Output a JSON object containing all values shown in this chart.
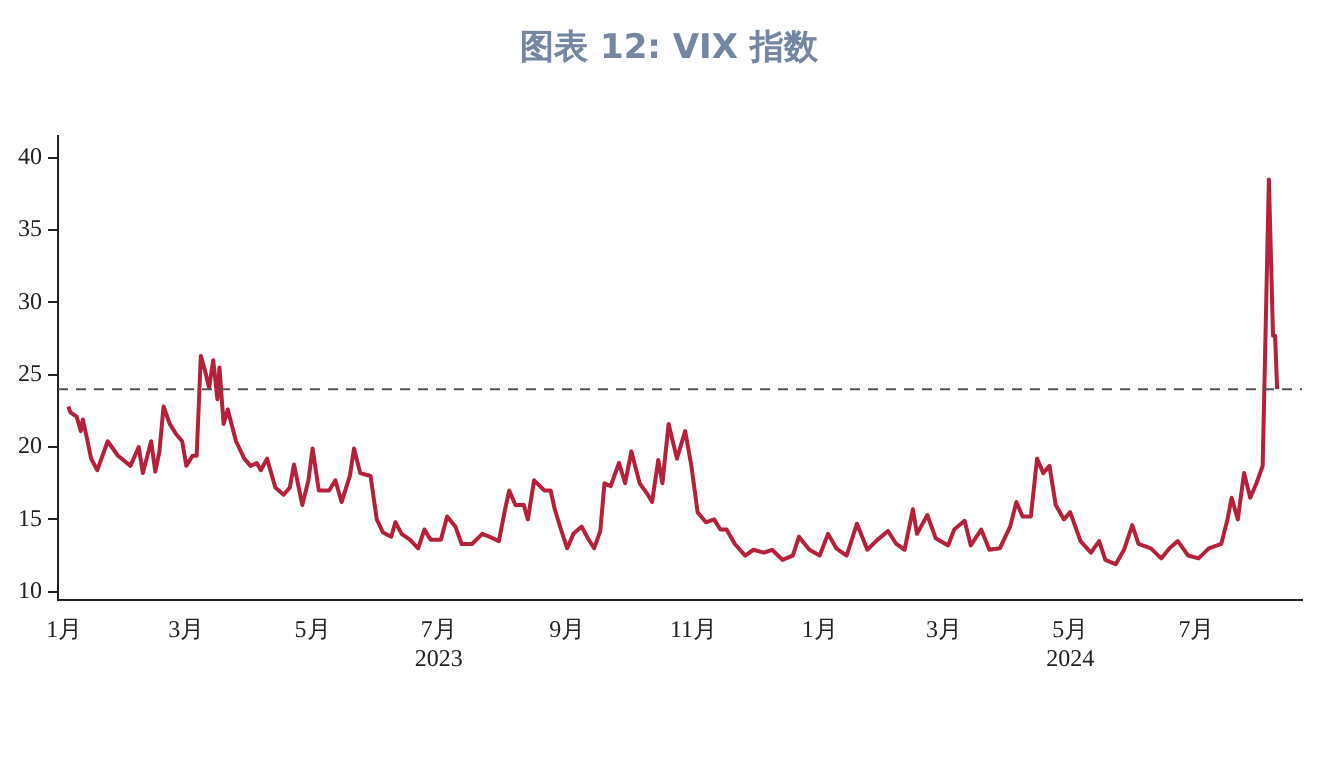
{
  "chart_data": {
    "type": "line",
    "title": "图表 12: VIX 指数",
    "x": [
      "2023-01-03",
      "2023-01-04",
      "2023-01-07",
      "2023-01-09",
      "2023-01-10",
      "2023-01-12",
      "2023-01-14",
      "2023-01-17",
      "2023-01-22",
      "2023-01-27",
      "2023-02-02",
      "2023-02-06",
      "2023-02-08",
      "2023-02-12",
      "2023-02-14",
      "2023-02-16",
      "2023-02-18",
      "2023-02-21",
      "2023-02-24",
      "2023-02-27",
      "2023-03-01",
      "2023-03-04",
      "2023-03-06",
      "2023-03-08",
      "2023-03-10",
      "2023-03-12",
      "2023-03-14",
      "2023-03-16",
      "2023-03-17",
      "2023-03-19",
      "2023-03-21",
      "2023-03-25",
      "2023-03-29",
      "2023-04-01",
      "2023-04-04",
      "2023-04-06",
      "2023-04-09",
      "2023-04-13",
      "2023-04-17",
      "2023-04-20",
      "2023-04-22",
      "2023-04-26",
      "2023-04-29",
      "2023-05-01",
      "2023-05-04",
      "2023-05-09",
      "2023-05-12",
      "2023-05-15",
      "2023-05-19",
      "2023-05-21",
      "2023-05-24",
      "2023-05-29",
      "2023-06-01",
      "2023-06-04",
      "2023-06-08",
      "2023-06-10",
      "2023-06-13",
      "2023-06-17",
      "2023-06-21",
      "2023-06-24",
      "2023-06-27",
      "2023-07-02",
      "2023-07-05",
      "2023-07-09",
      "2023-07-12",
      "2023-07-17",
      "2023-07-22",
      "2023-07-27",
      "2023-07-30",
      "2023-08-02",
      "2023-08-04",
      "2023-08-07",
      "2023-08-11",
      "2023-08-13",
      "2023-08-16",
      "2023-08-21",
      "2023-08-24",
      "2023-08-26",
      "2023-08-29",
      "2023-09-01",
      "2023-09-04",
      "2023-09-08",
      "2023-09-11",
      "2023-09-14",
      "2023-09-17",
      "2023-09-19",
      "2023-09-22",
      "2023-09-26",
      "2023-09-29",
      "2023-10-02",
      "2023-10-06",
      "2023-10-10",
      "2023-10-12",
      "2023-10-15",
      "2023-10-17",
      "2023-10-20",
      "2023-10-24",
      "2023-10-28",
      "2023-10-31",
      "2023-11-03",
      "2023-11-07",
      "2023-11-11",
      "2023-11-14",
      "2023-11-17",
      "2023-11-21",
      "2023-11-26",
      "2023-11-30",
      "2023-12-05",
      "2023-12-09",
      "2023-12-14",
      "2023-12-19",
      "2023-12-22",
      "2023-12-27",
      "2024-01-01",
      "2024-01-05",
      "2024-01-09",
      "2024-01-14",
      "2024-01-19",
      "2024-01-24",
      "2024-01-29",
      "2024-02-03",
      "2024-02-07",
      "2024-02-11",
      "2024-02-15",
      "2024-02-17",
      "2024-02-22",
      "2024-02-26",
      "2024-03-03",
      "2024-03-06",
      "2024-03-11",
      "2024-03-14",
      "2024-03-19",
      "2024-03-23",
      "2024-03-28",
      "2024-04-02",
      "2024-04-05",
      "2024-04-08",
      "2024-04-12",
      "2024-04-15",
      "2024-04-18",
      "2024-04-21",
      "2024-04-24",
      "2024-04-28",
      "2024-05-01",
      "2024-05-06",
      "2024-05-11",
      "2024-05-15",
      "2024-05-18",
      "2024-05-23",
      "2024-05-27",
      "2024-05-31",
      "2024-06-03",
      "2024-06-09",
      "2024-06-14",
      "2024-06-18",
      "2024-06-22",
      "2024-06-27",
      "2024-07-02",
      "2024-07-07",
      "2024-07-13",
      "2024-07-16",
      "2024-07-18",
      "2024-07-21",
      "2024-07-24",
      "2024-07-27",
      "2024-07-30",
      "2024-08-02",
      "2024-08-05",
      "2024-08-07",
      "2024-08-08",
      "2024-08-09"
    ],
    "series": [
      {
        "color": "#b5203a",
        "values": [
          22.8,
          22.4,
          22.1,
          21.1,
          21.9,
          20.6,
          19.2,
          18.4,
          20.4,
          19.4,
          18.7,
          20.0,
          18.2,
          20.4,
          18.3,
          19.7,
          22.8,
          21.6,
          20.9,
          20.4,
          18.7,
          19.4,
          19.4,
          26.3,
          25.3,
          24.1,
          26.0,
          23.3,
          25.5,
          21.6,
          22.6,
          20.4,
          19.2,
          18.7,
          18.9,
          18.4,
          19.2,
          17.2,
          16.7,
          17.2,
          18.8,
          16.0,
          17.7,
          19.9,
          17.0,
          17.0,
          17.7,
          16.2,
          18.0,
          19.9,
          18.2,
          18.0,
          15.0,
          14.1,
          13.8,
          14.8,
          14.0,
          13.6,
          13.0,
          14.3,
          13.6,
          13.6,
          15.2,
          14.5,
          13.3,
          13.3,
          14.0,
          13.7,
          13.5,
          15.7,
          17.0,
          16.0,
          16.0,
          15.0,
          17.7,
          17.0,
          17.0,
          15.7,
          14.3,
          13.0,
          14.0,
          14.5,
          13.7,
          13.0,
          14.2,
          17.5,
          17.3,
          18.9,
          17.5,
          19.7,
          17.5,
          16.7,
          16.2,
          19.1,
          17.5,
          21.6,
          19.2,
          21.1,
          18.7,
          15.5,
          14.8,
          15.0,
          14.3,
          14.3,
          13.3,
          12.5,
          12.9,
          12.7,
          12.9,
          12.2,
          12.5,
          13.8,
          12.9,
          12.5,
          14.0,
          13.0,
          12.5,
          14.7,
          12.9,
          13.6,
          14.2,
          13.3,
          12.9,
          15.7,
          14.0,
          15.3,
          13.7,
          13.2,
          14.3,
          14.9,
          13.2,
          14.3,
          12.9,
          13.0,
          14.5,
          16.2,
          15.2,
          15.2,
          19.2,
          18.2,
          18.7,
          16.0,
          15.0,
          15.5,
          13.5,
          12.7,
          13.5,
          12.2,
          11.9,
          12.9,
          14.6,
          13.3,
          13.0,
          12.3,
          13.0,
          13.5,
          12.5,
          12.3,
          13.0,
          13.3,
          15.0,
          16.5,
          15.0,
          18.2,
          16.5,
          17.5,
          18.7,
          38.5,
          27.7,
          27.7,
          24.0
        ]
      }
    ],
    "xlim": [
      "2022-12-29",
      "2024-08-21"
    ],
    "xticks": [
      {
        "value": "2023-01-01",
        "label": "1月"
      },
      {
        "value": "2023-03-01",
        "label": "3月"
      },
      {
        "value": "2023-05-01",
        "label": "5月"
      },
      {
        "value": "2023-07-01",
        "label": "7月\n2023"
      },
      {
        "value": "2023-09-01",
        "label": "9月"
      },
      {
        "value": "2023-11-01",
        "label": "11月"
      },
      {
        "value": "2024-01-01",
        "label": "1月"
      },
      {
        "value": "2024-03-01",
        "label": "3月"
      },
      {
        "value": "2024-05-01",
        "label": "5月\n2024"
      },
      {
        "value": "2024-07-01",
        "label": "7月"
      }
    ],
    "ylim": [
      9.4,
      41.5
    ],
    "yticks": [
      10,
      15,
      20,
      25,
      30,
      35,
      40
    ],
    "ref_lines": [
      {
        "axis": "y",
        "value": 24,
        "color": "#555555",
        "line_style": "dashed"
      }
    ],
    "grid": false,
    "legend": false,
    "marker": "none",
    "line_style": "solid"
  }
}
